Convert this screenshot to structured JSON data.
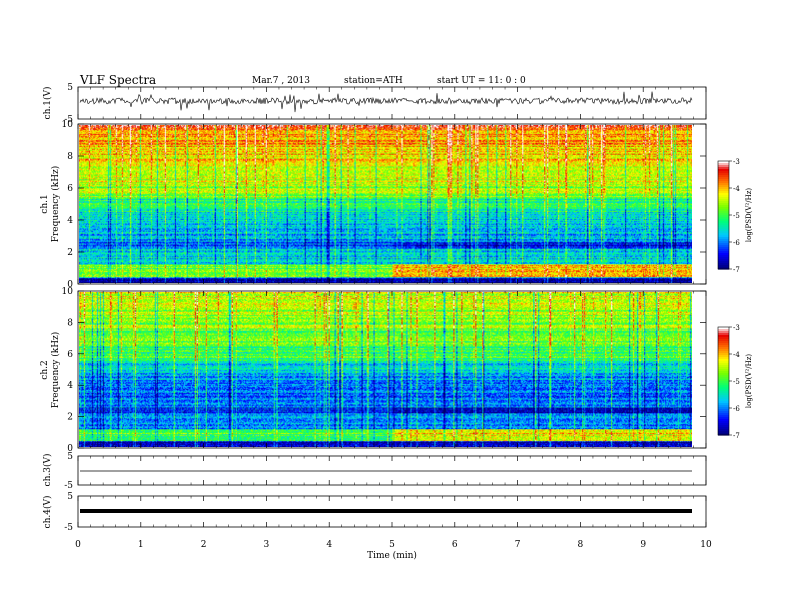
{
  "header": {
    "title": "VLF  Spectra",
    "date": "Mar.7  , 2013",
    "station": "station=ATH",
    "start": "start  UT  =   11: 0  : 0"
  },
  "chart_data": [
    {
      "type": "line",
      "panel": "ch1-waveform",
      "ylabel": "ch.1(V)",
      "yticks": [
        "5",
        "-5"
      ],
      "ylim": [
        -5,
        5
      ],
      "xlim": [
        0,
        10
      ],
      "series_color": "#000000"
    },
    {
      "type": "heatmap",
      "panel": "ch1-spectrogram",
      "ylabel_top": "ch.1",
      "ylabel": "Frequency (kHz)",
      "ylim": [
        0,
        10
      ],
      "yticks": [
        "0",
        "2",
        "4",
        "6",
        "8",
        "10"
      ],
      "xlim": [
        0,
        9.8
      ],
      "colorbar": {
        "label": "log(PSD(V²/Hz)",
        "ticks": [
          "-3",
          "-4",
          "-5",
          "-6",
          "-7"
        ],
        "range": [
          -7,
          -3
        ],
        "colors": [
          "#000066",
          "#0000ff",
          "#00ffff",
          "#00ff00",
          "#ffff00",
          "#ff0000",
          "#ffffff"
        ]
      }
    },
    {
      "type": "heatmap",
      "panel": "ch2-spectrogram",
      "ylabel_top": "ch.2",
      "ylabel": "Frequency (kHz)",
      "ylim": [
        0,
        10
      ],
      "yticks": [
        "0",
        "2",
        "4",
        "6",
        "8",
        "10"
      ],
      "xlim": [
        0,
        9.8
      ],
      "colorbar": {
        "label": "log(PSD(V²/Hz)",
        "ticks": [
          "-3",
          "-4",
          "-5",
          "-6",
          "-7"
        ],
        "range": [
          -7,
          -3
        ],
        "colors": [
          "#000066",
          "#0000ff",
          "#00ffff",
          "#00ff00",
          "#ffff00",
          "#ff0000",
          "#ffffff"
        ]
      }
    },
    {
      "type": "line",
      "panel": "ch3-waveform",
      "ylabel": "ch.3(V)",
      "yticks": [
        "5",
        "-5"
      ],
      "ylim": [
        -5,
        5
      ]
    },
    {
      "type": "line",
      "panel": "ch4-waveform",
      "ylabel": "ch.4(V)",
      "yticks": [
        "5",
        "-5"
      ],
      "ylim": [
        -5,
        5
      ]
    },
    {
      "type": "axis",
      "xlabel": "Time  (min)",
      "xticks": [
        "0",
        "1",
        "2",
        "3",
        "4",
        "5",
        "6",
        "7",
        "8",
        "9",
        "10"
      ],
      "xlim": [
        0,
        10
      ]
    }
  ]
}
